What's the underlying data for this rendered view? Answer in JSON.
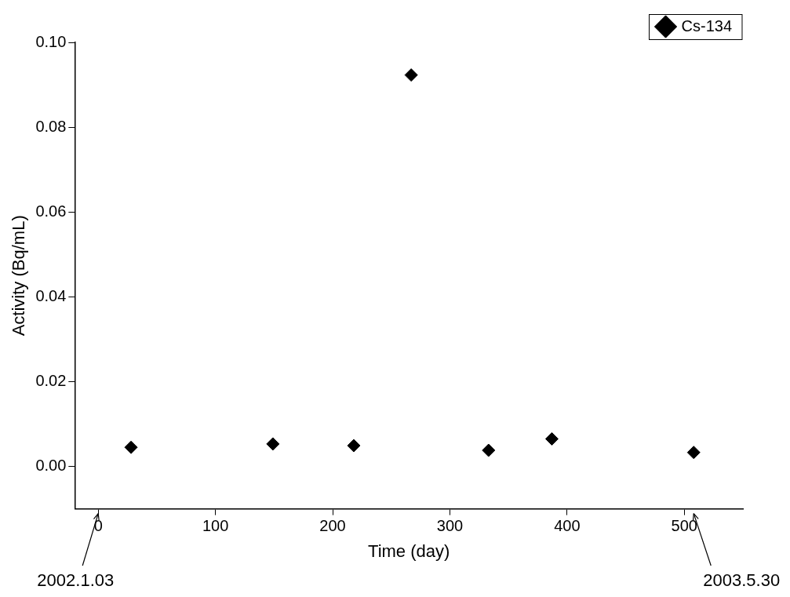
{
  "chart_data": {
    "type": "scatter",
    "x_label": "Time (day)",
    "y_label": "Activity (Bq/mL)",
    "series": [
      {
        "name": "Cs-134",
        "color": "#000000",
        "marker": "diamond",
        "x": [
          28,
          149,
          218,
          267,
          333,
          387,
          508
        ],
        "values": [
          0.0045,
          0.0053,
          0.0049,
          0.0923,
          0.0038,
          0.0065,
          0.0033
        ]
      }
    ],
    "xlim": [
      -20,
      550
    ],
    "xticks": [
      0,
      100,
      200,
      300,
      400,
      500
    ],
    "ylim": [
      -0.01,
      0.1
    ],
    "yticks": [
      {
        "value": 0,
        "label": "0.00"
      },
      {
        "value": 0.02,
        "label": "0.02"
      },
      {
        "value": 0.04,
        "label": "0.04"
      },
      {
        "value": 0.06,
        "label": "0.06"
      },
      {
        "value": 0.08,
        "label": "0.08"
      },
      {
        "value": 0.1,
        "label": "0.10"
      }
    ],
    "grid": false,
    "legend": "top-right",
    "annotations": [
      {
        "text": "2002.1.03",
        "x": 0
      },
      {
        "text": "2003.5.30",
        "x": 508
      }
    ]
  }
}
